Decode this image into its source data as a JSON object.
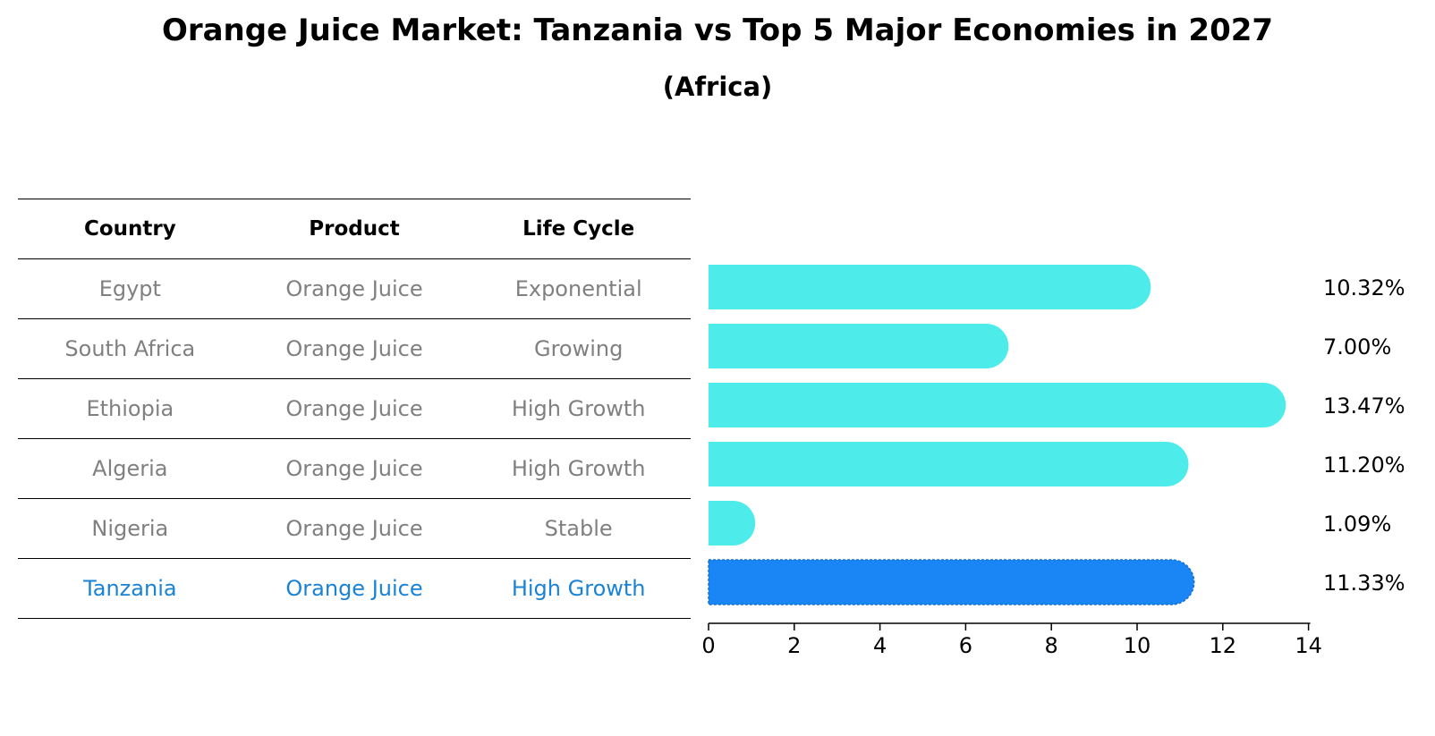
{
  "title": "Orange Juice Market: Tanzania vs Top 5 Major Economies in 2027",
  "subtitle": "(Africa)",
  "table": {
    "headers": [
      "Country",
      "Product",
      "Life Cycle"
    ],
    "rows": [
      [
        "Egypt",
        "Orange Juice",
        "Exponential"
      ],
      [
        "South Africa",
        "Orange Juice",
        "Growing"
      ],
      [
        "Ethiopia",
        "Orange Juice",
        "High Growth"
      ],
      [
        "Algeria",
        "Orange Juice",
        "High Growth"
      ],
      [
        "Nigeria",
        "Orange Juice",
        "Stable"
      ],
      [
        "Tanzania",
        "Orange Juice",
        "High Growth"
      ]
    ],
    "highlight_row": 5
  },
  "colors": {
    "bar": "#4deceb",
    "highlight_bar": "#1a86f5",
    "highlight_text": "#1a83d6",
    "muted_text": "#808080"
  },
  "chart_data": {
    "type": "bar",
    "orientation": "horizontal",
    "categories": [
      "Egypt",
      "South Africa",
      "Ethiopia",
      "Algeria",
      "Nigeria",
      "Tanzania"
    ],
    "values": [
      10.32,
      7.0,
      13.47,
      11.2,
      1.09,
      11.33
    ],
    "value_labels": [
      "10.32%",
      "7.00%",
      "13.47%",
      "11.20%",
      "1.09%",
      "11.33%"
    ],
    "highlight_index": 5,
    "xlim": [
      0,
      14
    ],
    "xticks": [
      0,
      2,
      4,
      6,
      8,
      10,
      12,
      14
    ],
    "xlabel": "",
    "ylabel": "",
    "grid": false
  }
}
